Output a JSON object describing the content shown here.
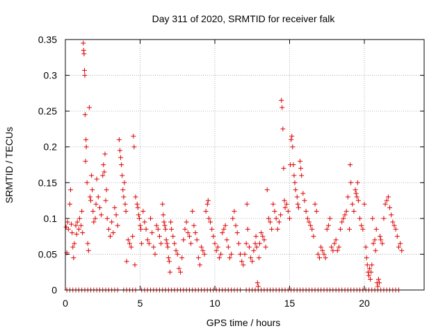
{
  "chart_data": {
    "type": "scatter",
    "title": "Day 311 of 2020, SRMTID for receiver falk",
    "xlabel": "GPS time / hours",
    "ylabel": "SRMTID / TECUs",
    "xlim": [
      0,
      24
    ],
    "ylim": [
      0,
      0.35
    ],
    "xticks": [
      0,
      5,
      10,
      15,
      20
    ],
    "yticks": [
      0,
      0.05,
      0.1,
      0.15,
      0.2,
      0.25,
      0.3,
      0.35
    ],
    "xtick_labels": [
      "0",
      "5",
      "10",
      "15",
      "20"
    ],
    "ytick_labels": [
      "0",
      "0.05",
      "0.1",
      "0.15",
      "0.2",
      "0.25",
      "0.3",
      "0.35"
    ],
    "grid": true,
    "marker": "+",
    "color": "#dd0000",
    "series": [
      {
        "name": "SRMTID",
        "points": [
          [
            0.05,
            0.088
          ],
          [
            0.1,
            0.052
          ],
          [
            0.15,
            0.095
          ],
          [
            0.2,
            0.085
          ],
          [
            0.3,
            0.12
          ],
          [
            0.35,
            0.14
          ],
          [
            0.4,
            0.092
          ],
          [
            0.45,
            0.08
          ],
          [
            0.5,
            0.06
          ],
          [
            0.55,
            0.045
          ],
          [
            0.6,
            0.065
          ],
          [
            0.7,
            0.09
          ],
          [
            0.75,
            0.078
          ],
          [
            0.8,
            0.095
          ],
          [
            0.9,
            0.085
          ],
          [
            0.95,
            0.1
          ],
          [
            1.05,
            0.09
          ],
          [
            1.1,
            0.11
          ],
          [
            1.15,
            0.08
          ],
          [
            1.2,
            0.345
          ],
          [
            1.22,
            0.335
          ],
          [
            1.25,
            0.33
          ],
          [
            1.28,
            0.307
          ],
          [
            1.3,
            0.3
          ],
          [
            1.32,
            0.245
          ],
          [
            1.35,
            0.18
          ],
          [
            1.38,
            0.21
          ],
          [
            1.4,
            0.2
          ],
          [
            1.45,
            0.15
          ],
          [
            1.5,
            0.065
          ],
          [
            1.55,
            0.055
          ],
          [
            1.6,
            0.255
          ],
          [
            1.65,
            0.13
          ],
          [
            1.7,
            0.125
          ],
          [
            1.75,
            0.16
          ],
          [
            1.8,
            0.14
          ],
          [
            1.85,
            0.11
          ],
          [
            1.9,
            0.095
          ],
          [
            2.0,
            0.1
          ],
          [
            2.05,
            0.12
          ],
          [
            2.1,
            0.155
          ],
          [
            2.2,
            0.13
          ],
          [
            2.3,
            0.115
          ],
          [
            2.4,
            0.105
          ],
          [
            2.5,
            0.16
          ],
          [
            2.55,
            0.175
          ],
          [
            2.6,
            0.165
          ],
          [
            2.65,
            0.19
          ],
          [
            2.7,
            0.125
          ],
          [
            2.75,
            0.14
          ],
          [
            2.8,
            0.1
          ],
          [
            2.9,
            0.085
          ],
          [
            3.0,
            0.075
          ],
          [
            3.1,
            0.095
          ],
          [
            3.2,
            0.08
          ],
          [
            3.3,
            0.115
          ],
          [
            3.4,
            0.105
          ],
          [
            3.5,
            0.09
          ],
          [
            3.6,
            0.21
          ],
          [
            3.65,
            0.195
          ],
          [
            3.7,
            0.185
          ],
          [
            3.75,
            0.175
          ],
          [
            3.8,
            0.16
          ],
          [
            3.85,
            0.14
          ],
          [
            3.9,
            0.13
          ],
          [
            3.95,
            0.15
          ],
          [
            4.0,
            0.12
          ],
          [
            4.05,
            0.11
          ],
          [
            4.1,
            0.04
          ],
          [
            4.2,
            0.07
          ],
          [
            4.3,
            0.065
          ],
          [
            4.4,
            0.06
          ],
          [
            4.5,
            0.075
          ],
          [
            4.55,
            0.215
          ],
          [
            4.6,
            0.2
          ],
          [
            4.65,
            0.035
          ],
          [
            4.7,
            0.13
          ],
          [
            4.8,
            0.12
          ],
          [
            4.85,
            0.115
          ],
          [
            4.9,
            0.105
          ],
          [
            4.95,
            0.1
          ],
          [
            5.0,
            0.09
          ],
          [
            5.05,
            0.085
          ],
          [
            5.1,
            0.065
          ],
          [
            5.2,
            0.11
          ],
          [
            5.3,
            0.095
          ],
          [
            5.4,
            0.085
          ],
          [
            5.5,
            0.07
          ],
          [
            5.6,
            0.065
          ],
          [
            5.7,
            0.1
          ],
          [
            5.8,
            0.08
          ],
          [
            5.9,
            0.06
          ],
          [
            6.0,
            0.05
          ],
          [
            6.1,
            0.09
          ],
          [
            6.2,
            0.085
          ],
          [
            6.3,
            0.075
          ],
          [
            6.4,
            0.065
          ],
          [
            6.5,
            0.12
          ],
          [
            6.55,
            0.105
          ],
          [
            6.6,
            0.095
          ],
          [
            6.65,
            0.09
          ],
          [
            6.7,
            0.085
          ],
          [
            6.75,
            0.07
          ],
          [
            6.8,
            0.065
          ],
          [
            6.85,
            0.06
          ],
          [
            6.9,
            0.045
          ],
          [
            6.95,
            0.04
          ],
          [
            7.0,
            0.025
          ],
          [
            7.05,
            0.095
          ],
          [
            7.1,
            0.085
          ],
          [
            7.2,
            0.075
          ],
          [
            7.3,
            0.065
          ],
          [
            7.4,
            0.055
          ],
          [
            7.5,
            0.05
          ],
          [
            7.6,
            0.03
          ],
          [
            7.7,
            0.025
          ],
          [
            7.8,
            0.045
          ],
          [
            7.9,
            0.07
          ],
          [
            8.0,
            0.085
          ],
          [
            8.1,
            0.095
          ],
          [
            8.2,
            0.08
          ],
          [
            8.3,
            0.075
          ],
          [
            8.4,
            0.065
          ],
          [
            8.5,
            0.11
          ],
          [
            8.6,
            0.09
          ],
          [
            8.7,
            0.08
          ],
          [
            8.8,
            0.07
          ],
          [
            8.9,
            0.045
          ],
          [
            9.0,
            0.035
          ],
          [
            9.1,
            0.06
          ],
          [
            9.2,
            0.055
          ],
          [
            9.3,
            0.05
          ],
          [
            9.4,
            0.11
          ],
          [
            9.5,
            0.12
          ],
          [
            9.55,
            0.125
          ],
          [
            9.6,
            0.1
          ],
          [
            9.7,
            0.095
          ],
          [
            9.8,
            0.085
          ],
          [
            9.9,
            0.075
          ],
          [
            10.0,
            0.065
          ],
          [
            10.1,
            0.055
          ],
          [
            10.2,
            0.06
          ],
          [
            10.3,
            0.045
          ],
          [
            10.4,
            0.05
          ],
          [
            10.5,
            0.08
          ],
          [
            10.6,
            0.085
          ],
          [
            10.7,
            0.09
          ],
          [
            10.8,
            0.07
          ],
          [
            10.9,
            0.06
          ],
          [
            11.0,
            0.045
          ],
          [
            11.1,
            0.05
          ],
          [
            11.2,
            0.1
          ],
          [
            11.3,
            0.11
          ],
          [
            11.4,
            0.09
          ],
          [
            11.5,
            0.08
          ],
          [
            11.6,
            0.065
          ],
          [
            11.7,
            0.05
          ],
          [
            11.8,
            0.04
          ],
          [
            11.9,
            0.035
          ],
          [
            12.0,
            0.05
          ],
          [
            12.1,
            0.065
          ],
          [
            12.15,
            0.12
          ],
          [
            12.2,
            0.085
          ],
          [
            12.3,
            0.06
          ],
          [
            12.4,
            0.045
          ],
          [
            12.5,
            0.04
          ],
          [
            12.6,
            0.055
          ],
          [
            12.7,
            0.065
          ],
          [
            12.75,
            0.075
          ],
          [
            12.8,
            0.06
          ],
          [
            12.85,
            0.01
          ],
          [
            12.9,
            0.005
          ],
          [
            12.95,
            0.045
          ],
          [
            13.0,
            0.065
          ],
          [
            13.1,
            0.08
          ],
          [
            13.2,
            0.075
          ],
          [
            13.3,
            0.07
          ],
          [
            13.4,
            0.06
          ],
          [
            13.5,
            0.14
          ],
          [
            13.6,
            0.1
          ],
          [
            13.7,
            0.095
          ],
          [
            13.8,
            0.085
          ],
          [
            13.9,
            0.12
          ],
          [
            14.0,
            0.11
          ],
          [
            14.1,
            0.1
          ],
          [
            14.2,
            0.085
          ],
          [
            14.3,
            0.095
          ],
          [
            14.4,
            0.105
          ],
          [
            14.45,
            0.265
          ],
          [
            14.5,
            0.255
          ],
          [
            14.55,
            0.225
          ],
          [
            14.6,
            0.17
          ],
          [
            14.65,
            0.125
          ],
          [
            14.7,
            0.115
          ],
          [
            14.8,
            0.12
          ],
          [
            14.9,
            0.11
          ],
          [
            15.0,
            0.1
          ],
          [
            15.05,
            0.175
          ],
          [
            15.1,
            0.21
          ],
          [
            15.15,
            0.215
          ],
          [
            15.2,
            0.2
          ],
          [
            15.25,
            0.175
          ],
          [
            15.3,
            0.16
          ],
          [
            15.35,
            0.15
          ],
          [
            15.4,
            0.14
          ],
          [
            15.5,
            0.13
          ],
          [
            15.55,
            0.12
          ],
          [
            15.6,
            0.115
          ],
          [
            15.7,
            0.18
          ],
          [
            15.75,
            0.17
          ],
          [
            15.8,
            0.16
          ],
          [
            15.9,
            0.135
          ],
          [
            16.0,
            0.125
          ],
          [
            16.1,
            0.11
          ],
          [
            16.2,
            0.1
          ],
          [
            16.3,
            0.095
          ],
          [
            16.4,
            0.09
          ],
          [
            16.5,
            0.085
          ],
          [
            16.6,
            0.075
          ],
          [
            16.7,
            0.12
          ],
          [
            16.8,
            0.11
          ],
          [
            16.9,
            0.05
          ],
          [
            17.0,
            0.045
          ],
          [
            17.1,
            0.06
          ],
          [
            17.2,
            0.055
          ],
          [
            17.3,
            0.05
          ],
          [
            17.4,
            0.045
          ],
          [
            17.5,
            0.085
          ],
          [
            17.6,
            0.09
          ],
          [
            17.7,
            0.1
          ],
          [
            17.8,
            0.06
          ],
          [
            17.9,
            0.055
          ],
          [
            18.0,
            0.065
          ],
          [
            18.1,
            0.07
          ],
          [
            18.2,
            0.055
          ],
          [
            18.3,
            0.06
          ],
          [
            18.4,
            0.085
          ],
          [
            18.5,
            0.095
          ],
          [
            18.6,
            0.1
          ],
          [
            18.7,
            0.105
          ],
          [
            18.8,
            0.11
          ],
          [
            18.9,
            0.13
          ],
          [
            19.0,
            0.085
          ],
          [
            19.05,
            0.175
          ],
          [
            19.1,
            0.15
          ],
          [
            19.2,
            0.12
          ],
          [
            19.3,
            0.11
          ],
          [
            19.4,
            0.14
          ],
          [
            19.45,
            0.135
          ],
          [
            19.5,
            0.13
          ],
          [
            19.55,
            0.15
          ],
          [
            19.6,
            0.125
          ],
          [
            19.7,
            0.1
          ],
          [
            19.8,
            0.09
          ],
          [
            19.9,
            0.085
          ],
          [
            20.0,
            0.12
          ],
          [
            20.1,
            0.06
          ],
          [
            20.15,
            0.045
          ],
          [
            20.2,
            0.035
          ],
          [
            20.25,
            0.025
          ],
          [
            20.3,
            0.02
          ],
          [
            20.35,
            0.03
          ],
          [
            20.4,
            0.015
          ],
          [
            20.45,
            0.025
          ],
          [
            20.5,
            0.035
          ],
          [
            20.55,
            0.1
          ],
          [
            20.6,
            0.065
          ],
          [
            20.7,
            0.07
          ],
          [
            20.75,
            0.055
          ],
          [
            20.8,
            0.085
          ],
          [
            20.85,
            0.01
          ],
          [
            20.9,
            0.005
          ],
          [
            20.95,
            0.015
          ],
          [
            21.0,
            0.01
          ],
          [
            21.05,
            0.075
          ],
          [
            21.1,
            0.07
          ],
          [
            21.2,
            0.065
          ],
          [
            21.3,
            0.1
          ],
          [
            21.4,
            0.12
          ],
          [
            21.5,
            0.125
          ],
          [
            21.6,
            0.13
          ],
          [
            21.7,
            0.115
          ],
          [
            21.8,
            0.105
          ],
          [
            21.9,
            0.095
          ],
          [
            22.0,
            0.09
          ],
          [
            22.1,
            0.085
          ],
          [
            22.2,
            0.075
          ],
          [
            22.3,
            0.06
          ],
          [
            22.4,
            0.065
          ],
          [
            22.5,
            0.055
          ]
        ]
      }
    ],
    "zero_points_x": [
      0.1,
      0.3,
      0.5,
      0.7,
      0.9,
      1.1,
      1.3,
      1.5,
      1.7,
      1.9,
      2.1,
      2.3,
      2.5,
      2.7,
      2.9,
      3.1,
      3.3,
      3.5,
      3.9,
      4.1,
      4.3,
      4.5,
      4.7,
      5.1,
      5.3,
      5.5,
      5.7,
      5.9,
      6.1,
      6.3,
      6.5,
      6.7,
      6.9,
      7.1,
      7.3,
      7.5,
      7.7,
      7.9,
      8.1,
      8.3,
      8.5,
      8.7,
      8.9,
      9.1,
      9.3,
      9.5,
      9.7,
      9.9,
      10.1,
      10.3,
      10.5,
      10.7,
      10.9,
      11.1,
      11.3,
      11.5,
      11.7,
      12.1,
      12.3,
      12.5,
      12.7,
      12.9,
      13.1,
      13.3,
      13.5,
      13.7,
      13.9,
      14.1,
      14.3,
      14.5,
      14.7,
      14.9,
      15.1,
      15.3,
      15.5,
      15.7,
      15.9,
      16.1,
      16.3,
      16.5,
      16.7,
      16.9,
      17.1,
      17.3,
      17.5,
      17.7,
      17.9,
      18.1,
      18.3,
      18.5,
      18.7,
      18.9,
      19.1,
      19.3,
      19.5,
      19.7,
      19.9,
      20.1,
      20.3,
      20.5,
      20.7,
      20.9,
      21.1,
      21.3,
      21.5,
      21.7,
      21.9,
      22.1,
      22.3
    ]
  }
}
